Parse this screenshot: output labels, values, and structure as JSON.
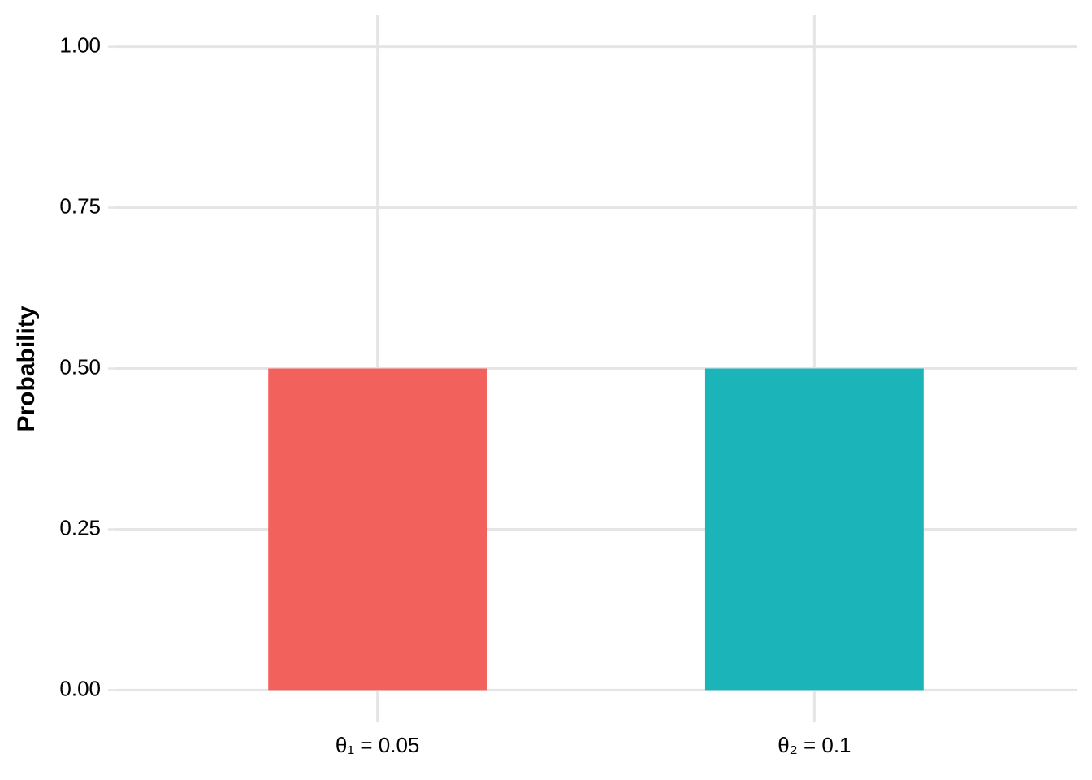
{
  "chart_data": {
    "type": "bar",
    "y_label": "Probability",
    "categories": [
      "θ₁ = 0.05",
      "θ₂ = 0.1"
    ],
    "values": [
      0.5,
      0.5
    ],
    "colors": [
      "#f3615d",
      "#1bb4b9"
    ],
    "ylim": [
      -0.05,
      1.05
    ],
    "yticks": [
      {
        "value": 0,
        "label": "0.00"
      },
      {
        "value": 0.25,
        "label": "0.25"
      },
      {
        "value": 0.5,
        "label": "0.50"
      },
      {
        "value": 0.75,
        "label": "0.75"
      },
      {
        "value": 1,
        "label": "1.00"
      }
    ],
    "grid": true
  }
}
